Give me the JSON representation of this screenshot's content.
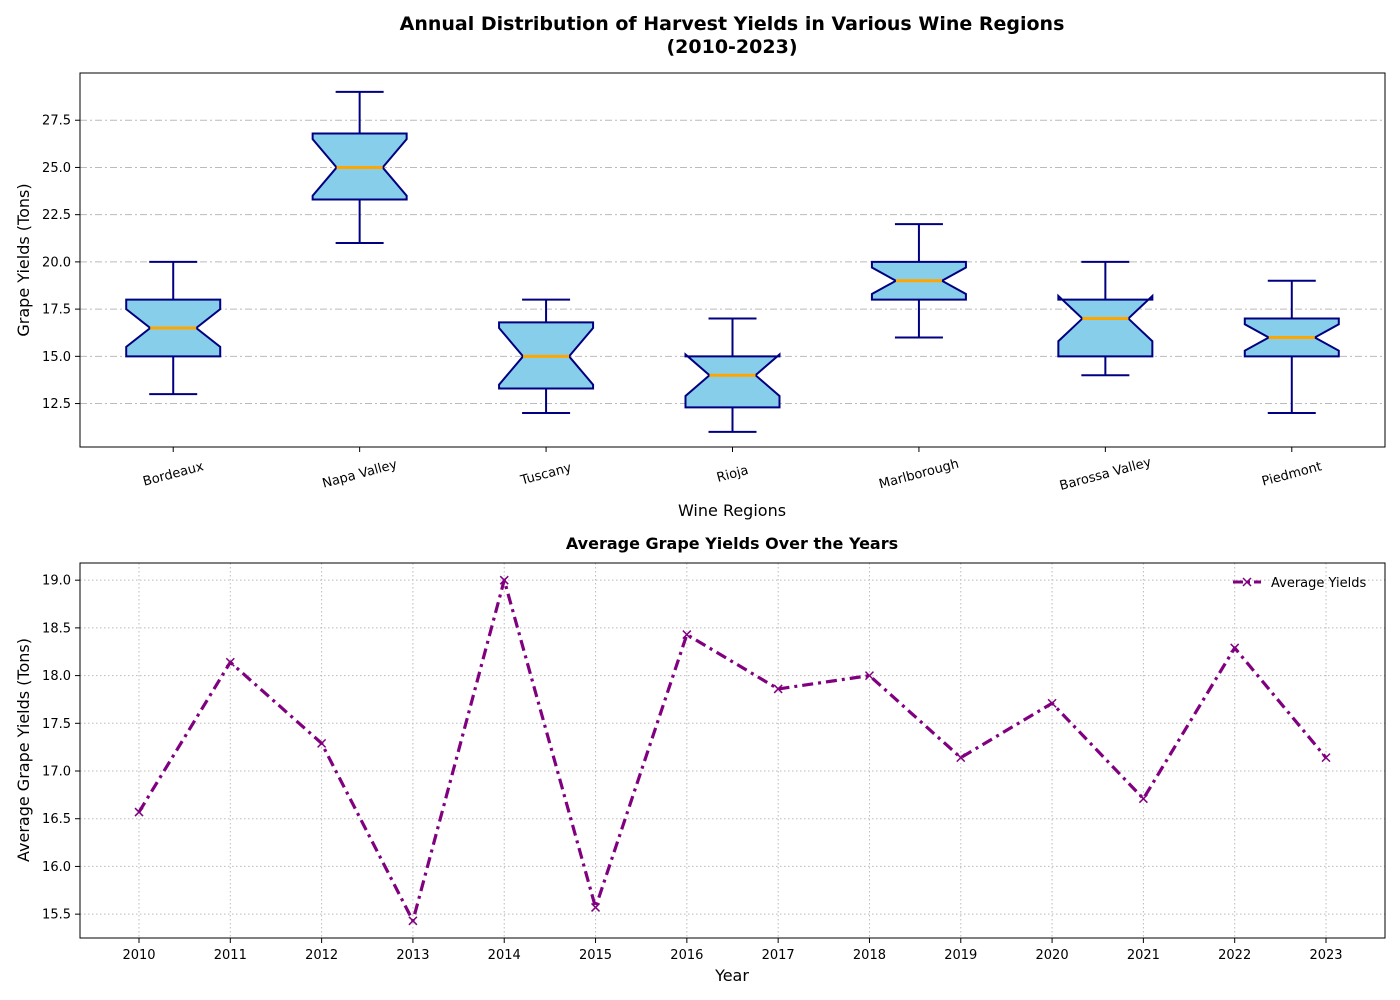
{
  "figure": {
    "title_line1": "Annual Distribution of Harvest Yields in Various Wine Regions",
    "title_line2": "(2010-2023)"
  },
  "chart_data": [
    {
      "type": "box",
      "title": "Annual Distribution of Harvest Yields in Various Wine Regions (2010-2023)",
      "xlabel": "Wine Regions",
      "ylabel": "Grape Yields (Tons)",
      "ylim": [
        10.2,
        30.0
      ],
      "yticks": [
        12.5,
        15.0,
        17.5,
        20.0,
        22.5,
        25.0,
        27.5
      ],
      "ytick_labels": [
        "12.5",
        "15.0",
        "17.5",
        "20.0",
        "22.5",
        "25.0",
        "27.5"
      ],
      "grid": true,
      "notched": true,
      "colors": {
        "box_fill": "#87CEEB",
        "box_edge": "#000080",
        "median": "#FFA500",
        "grid": "#BBBBBB"
      },
      "categories": [
        "Bordeaux",
        "Napa Valley",
        "Tuscany",
        "Rioja",
        "Marlborough",
        "Barossa Valley",
        "Piedmont"
      ],
      "boxes": [
        {
          "whislo": 13,
          "q1": 15.0,
          "med": 16.5,
          "q3": 18.0,
          "whishi": 20,
          "notch": [
            15.5,
            17.5
          ]
        },
        {
          "whislo": 21,
          "q1": 23.3,
          "med": 25.0,
          "q3": 26.8,
          "whishi": 29,
          "notch": [
            23.5,
            26.5
          ]
        },
        {
          "whislo": 12,
          "q1": 13.3,
          "med": 15.0,
          "q3": 16.8,
          "whishi": 18,
          "notch": [
            13.5,
            16.5
          ]
        },
        {
          "whislo": 11,
          "q1": 12.3,
          "med": 14.0,
          "q3": 15.0,
          "whishi": 17,
          "notch": [
            12.9,
            15.1
          ]
        },
        {
          "whislo": 16,
          "q1": 18.0,
          "med": 19.0,
          "q3": 20.0,
          "whishi": 22,
          "notch": [
            18.3,
            19.7
          ]
        },
        {
          "whislo": 14,
          "q1": 15.0,
          "med": 17.0,
          "q3": 18.0,
          "whishi": 20,
          "notch": [
            15.8,
            18.2
          ]
        },
        {
          "whislo": 12,
          "q1": 15.0,
          "med": 16.0,
          "q3": 17.0,
          "whishi": 19,
          "notch": [
            15.3,
            16.7
          ]
        }
      ]
    },
    {
      "type": "line",
      "title": "Average Grape Yields Over the Years",
      "xlabel": "Year",
      "ylabel": "Average Grape Yields (Tons)",
      "ylim": [
        15.25,
        19.18
      ],
      "yticks": [
        15.5,
        16.0,
        16.5,
        17.0,
        17.5,
        18.0,
        18.5,
        19.0
      ],
      "ytick_labels": [
        "15.5",
        "16.0",
        "16.5",
        "17.0",
        "17.5",
        "18.0",
        "18.5",
        "19.0"
      ],
      "grid": true,
      "legend": "top-right",
      "x": [
        "2010",
        "2011",
        "2012",
        "2013",
        "2014",
        "2015",
        "2016",
        "2017",
        "2018",
        "2019",
        "2020",
        "2021",
        "2022",
        "2023"
      ],
      "series": [
        {
          "name": "Average Yields",
          "color": "#800080",
          "marker": "x",
          "linestyle": "dash-dot",
          "values": [
            16.57,
            18.14,
            17.29,
            15.43,
            19.0,
            15.57,
            18.43,
            17.86,
            18.0,
            17.14,
            17.71,
            16.71,
            18.29,
            17.14
          ]
        }
      ]
    }
  ]
}
